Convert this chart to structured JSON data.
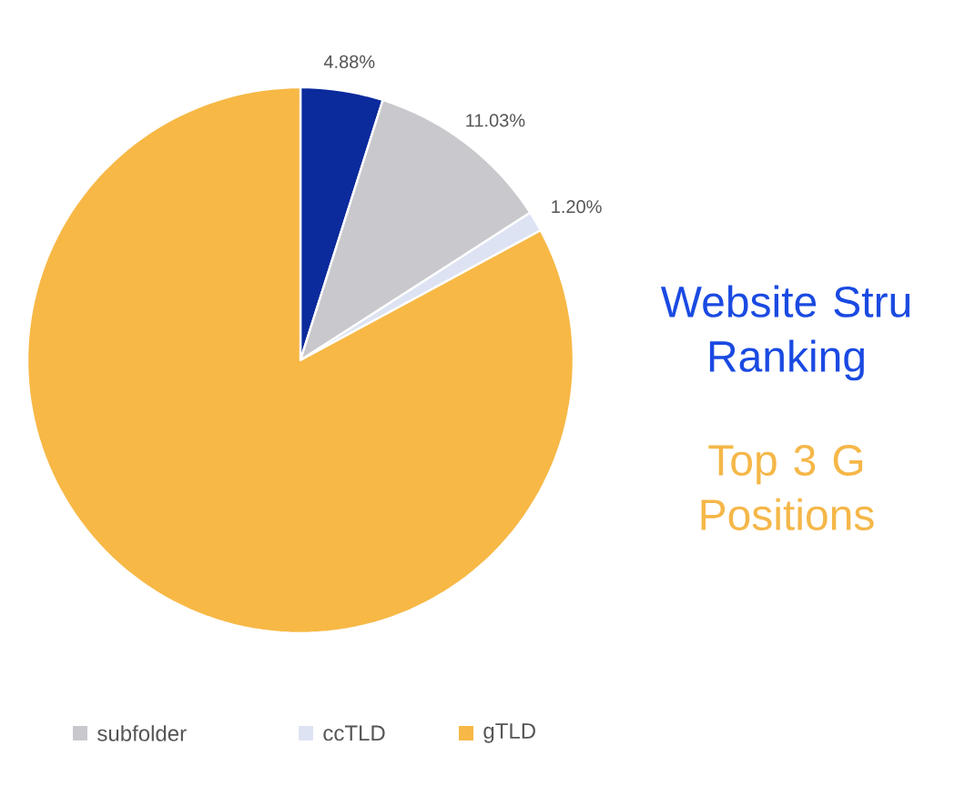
{
  "chart_data": {
    "type": "pie",
    "title": "Website Stru Ranking",
    "subtitle": "Top 3 G Positions",
    "categories": [
      null,
      "subfolder",
      "ccTLD",
      "gTLD"
    ],
    "values": [
      4.88,
      11.03,
      1.2,
      82.89
    ],
    "colors": [
      "#0b2a9c",
      "#c9c9cd",
      "#dde3f3",
      "#f7b846"
    ],
    "value_labels": [
      "4.88%",
      "11.03%",
      "1.20%",
      null
    ],
    "legend": "bottom"
  }
}
